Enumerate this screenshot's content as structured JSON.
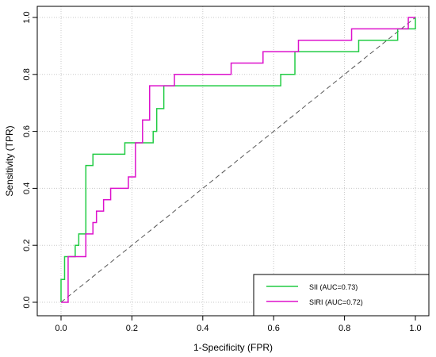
{
  "chart_data": {
    "type": "line",
    "xlabel": "1-Specificity (FPR)",
    "ylabel": "Sensitivity (TPR)",
    "xlim": [
      0,
      1
    ],
    "ylim": [
      0,
      1
    ],
    "x_ticks": [
      "0.0",
      "0.2",
      "0.4",
      "0.6",
      "0.8",
      "1.0"
    ],
    "y_ticks": [
      "0.0",
      "0.2",
      "0.4",
      "0.6",
      "0.8",
      "1.0"
    ],
    "grid": true,
    "legend_position": "bottom-right",
    "diagonal_reference": true,
    "series": [
      {
        "name": "SII (AUC=0.73)",
        "color": "#22cc44",
        "x": [
          0,
          0,
          0.01,
          0.01,
          0.04,
          0.04,
          0.05,
          0.05,
          0.07,
          0.07,
          0.09,
          0.09,
          0.18,
          0.18,
          0.26,
          0.26,
          0.27,
          0.27,
          0.29,
          0.29,
          0.62,
          0.62,
          0.66,
          0.66,
          0.84,
          0.84,
          0.95,
          0.95,
          1.0,
          1.0
        ],
        "y": [
          0,
          0.08,
          0.08,
          0.16,
          0.16,
          0.2,
          0.2,
          0.24,
          0.24,
          0.48,
          0.48,
          0.52,
          0.52,
          0.56,
          0.56,
          0.6,
          0.6,
          0.68,
          0.68,
          0.76,
          0.76,
          0.8,
          0.8,
          0.88,
          0.88,
          0.92,
          0.92,
          0.96,
          0.96,
          1.0
        ]
      },
      {
        "name": "SIRI (AUC=0.72)",
        "color": "#dd11cc",
        "x": [
          0,
          0.02,
          0.02,
          0.07,
          0.07,
          0.09,
          0.09,
          0.1,
          0.1,
          0.12,
          0.12,
          0.14,
          0.14,
          0.19,
          0.19,
          0.21,
          0.21,
          0.23,
          0.23,
          0.25,
          0.25,
          0.32,
          0.32,
          0.48,
          0.48,
          0.57,
          0.57,
          0.67,
          0.67,
          0.82,
          0.82,
          0.98,
          0.98,
          1.0
        ],
        "y": [
          0,
          0,
          0.16,
          0.16,
          0.24,
          0.24,
          0.28,
          0.28,
          0.32,
          0.32,
          0.36,
          0.36,
          0.4,
          0.4,
          0.44,
          0.44,
          0.56,
          0.56,
          0.64,
          0.64,
          0.76,
          0.76,
          0.8,
          0.8,
          0.84,
          0.84,
          0.88,
          0.88,
          0.92,
          0.92,
          0.96,
          0.96,
          1.0,
          1.0
        ]
      }
    ]
  }
}
